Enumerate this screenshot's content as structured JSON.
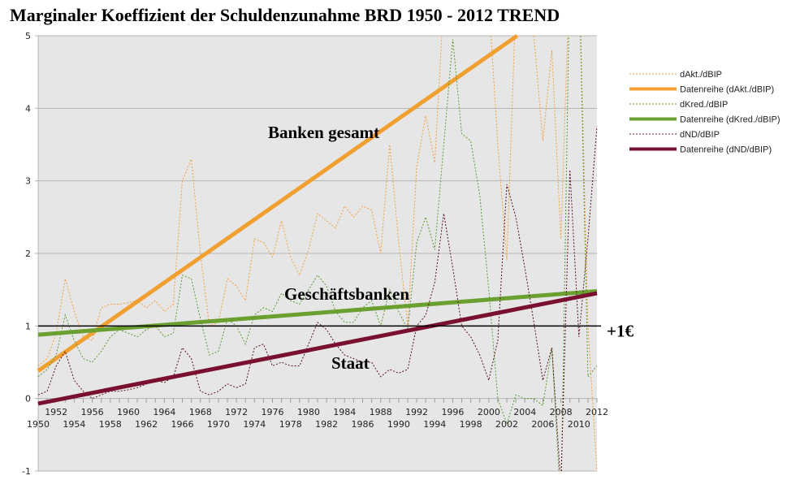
{
  "chart_data": {
    "type": "line",
    "title": "Marginaler Koeffizient der Schuldenzunahme BRD 1950 - 2012 TREND",
    "xlim": [
      1950,
      2012
    ],
    "ylim": [
      -1,
      5
    ],
    "yticks": [
      "-1",
      "0",
      "1",
      "2",
      "3",
      "4",
      "5"
    ],
    "xticks_top": [
      "1952",
      "1956",
      "1960",
      "1964",
      "1968",
      "1972",
      "1976",
      "1980",
      "1984",
      "1988",
      "1992",
      "1996",
      "2000",
      "2004",
      "2008",
      "2012"
    ],
    "xticks_bottom": [
      "1950",
      "1954",
      "1958",
      "1962",
      "1966",
      "1970",
      "1974",
      "1978",
      "1982",
      "1986",
      "1990",
      "1994",
      "1998",
      "2002",
      "2006",
      "2010"
    ],
    "grid": true,
    "legend_position": "right",
    "x_start": 1950,
    "series": [
      {
        "name": "dAkt./dBIP",
        "style": "dotted",
        "color": "#f0a040",
        "values": [
          0.45,
          0.55,
          0.9,
          1.65,
          1.2,
          0.85,
          0.8,
          1.25,
          1.3,
          1.3,
          1.32,
          1.35,
          1.25,
          1.35,
          1.2,
          1.3,
          3.0,
          3.3,
          2.0,
          1.0,
          1.05,
          1.65,
          1.55,
          1.35,
          2.2,
          2.15,
          1.95,
          2.45,
          1.95,
          1.7,
          2.05,
          2.55,
          2.45,
          2.35,
          2.65,
          2.5,
          2.65,
          2.6,
          2.0,
          3.5,
          2.15,
          1.0,
          3.2,
          3.9,
          3.25,
          5.5,
          6,
          6,
          5.5,
          5.2,
          5.5,
          3.5,
          1.9,
          5.5,
          6,
          5.0,
          3.55,
          4.8,
          2.2,
          6,
          6,
          1.0,
          -1.0
        ]
      },
      {
        "name": "Datenreihe (dAkt./dBIP)",
        "style": "trend",
        "color": "#f0a030",
        "values": [
          0.38,
          5.77
        ]
      },
      {
        "name": "dKred./dBIP",
        "style": "dotted",
        "color": "#5a9a30",
        "values": [
          0.3,
          0.4,
          0.6,
          1.15,
          0.8,
          0.55,
          0.5,
          0.65,
          0.85,
          0.95,
          0.9,
          0.85,
          0.95,
          1.0,
          0.85,
          0.9,
          1.7,
          1.65,
          1.1,
          0.6,
          0.65,
          1.1,
          1.0,
          0.75,
          1.15,
          1.25,
          1.2,
          1.45,
          1.35,
          1.3,
          1.5,
          1.7,
          1.55,
          1.2,
          1.05,
          1.05,
          1.25,
          1.35,
          1.0,
          1.5,
          1.2,
          0.95,
          2.15,
          2.5,
          2.05,
          3.5,
          4.95,
          3.65,
          3.55,
          2.8,
          1.5,
          0.0,
          -0.35,
          0.05,
          0.0,
          0.0,
          -0.1,
          0.7,
          -1.5,
          6,
          6,
          0.3,
          0.45
        ]
      },
      {
        "name": "Datenreihe (dKred./dBIP)",
        "style": "trend",
        "color": "#6aa030",
        "values": [
          0.88,
          1.48
        ]
      },
      {
        "name": "dND/dBIP",
        "style": "dotted",
        "color": "#5a1020",
        "values": [
          0.05,
          0.1,
          0.45,
          0.65,
          0.25,
          0.1,
          0.0,
          0.05,
          0.1,
          0.1,
          0.12,
          0.15,
          0.2,
          0.25,
          0.22,
          0.3,
          0.7,
          0.55,
          0.1,
          0.05,
          0.1,
          0.2,
          0.15,
          0.2,
          0.7,
          0.75,
          0.45,
          0.5,
          0.45,
          0.45,
          0.75,
          1.05,
          0.95,
          0.75,
          0.6,
          0.55,
          0.5,
          0.5,
          0.3,
          0.4,
          0.35,
          0.4,
          1.0,
          1.15,
          1.6,
          2.55,
          1.8,
          1.0,
          0.85,
          0.6,
          0.25,
          0.8,
          2.95,
          2.5,
          1.8,
          1.05,
          0.25,
          0.7,
          -1.2,
          3.15,
          0.85,
          2.2,
          3.75
        ]
      },
      {
        "name": "Datenreihe (dND/dBIP)",
        "style": "trend",
        "color": "#7a1030",
        "values": [
          -0.07,
          1.45
        ]
      }
    ],
    "reference_line": {
      "value": 1,
      "label": "+1€"
    },
    "annotations": [
      "Banken gesamt",
      "Geschäftsbanken",
      "Staat"
    ]
  }
}
